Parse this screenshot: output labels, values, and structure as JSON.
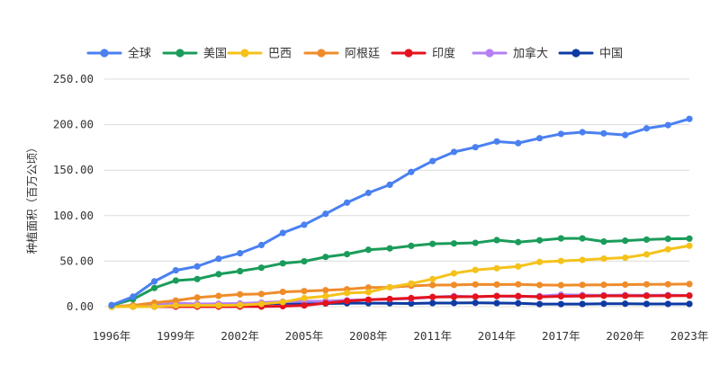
{
  "chart_data": {
    "type": "line",
    "title": "",
    "xlabel": "",
    "ylabel": "种植面积（百万公顷）",
    "ylim": [
      0,
      250
    ],
    "y_ticks": [
      "0.00",
      "50.00",
      "100.00",
      "150.00",
      "200.00",
      "250.00"
    ],
    "y_tick_values": [
      0,
      50,
      100,
      150,
      200,
      250
    ],
    "x": [
      1996,
      1997,
      1998,
      1999,
      2000,
      2001,
      2002,
      2003,
      2004,
      2005,
      2006,
      2007,
      2008,
      2009,
      2010,
      2011,
      2012,
      2013,
      2014,
      2015,
      2016,
      2017,
      2018,
      2019,
      2020,
      2021,
      2022,
      2023
    ],
    "x_tick_labels": [
      "1996年",
      "1999年",
      "2002年",
      "2005年",
      "2008年",
      "2011年",
      "2014年",
      "2017年",
      "2020年",
      "2023年"
    ],
    "x_tick_values": [
      1996,
      1999,
      2002,
      2005,
      2008,
      2011,
      2014,
      2017,
      2020,
      2023
    ],
    "grid": true,
    "legend_position": "top",
    "series": [
      {
        "name": "全球",
        "color": "#4a80f0",
        "values": [
          1.7,
          11,
          27.8,
          39.9,
          44.2,
          52.6,
          58.7,
          67.7,
          81,
          90,
          102,
          114.3,
          125,
          134,
          148,
          160,
          170,
          175.2,
          181.5,
          179.7,
          185.1,
          189.8,
          191.7,
          190.4,
          188.6,
          195.9,
          199.5,
          206.3
        ]
      },
      {
        "name": "美国",
        "color": "#1a9c5a",
        "values": [
          1.5,
          8.1,
          20.5,
          28.7,
          30.3,
          35.7,
          39,
          42.8,
          47.6,
          49.8,
          54.6,
          57.7,
          62.5,
          64,
          66.8,
          69,
          69.5,
          70.1,
          73.1,
          70.9,
          72.9,
          75,
          75,
          71.5,
          72.5,
          73.7,
          74.5,
          74.8
        ]
      },
      {
        "name": "巴西",
        "color": "#f5c21b",
        "values": [
          0,
          0,
          0,
          1.2,
          1.3,
          1.3,
          1.7,
          3,
          5,
          9.4,
          11.5,
          15,
          15.8,
          21.4,
          25.4,
          30.3,
          36.6,
          40.3,
          42.2,
          44.2,
          49.1,
          50.2,
          51.3,
          52.8,
          53.8,
          57.4,
          63,
          66.9
        ]
      },
      {
        "name": "阿根廷",
        "color": "#ef8c2a",
        "values": [
          0.1,
          1.4,
          4.3,
          6.7,
          10,
          11.8,
          13.5,
          13.9,
          16.2,
          17.1,
          18,
          19.1,
          21,
          21.3,
          22.9,
          23.7,
          23.9,
          24.4,
          24.3,
          24.5,
          23.8,
          23.6,
          23.9,
          24,
          24.2,
          24.5,
          24.6,
          24.8
        ]
      },
      {
        "name": "印度",
        "color": "#e3121d",
        "values": [
          0,
          0,
          0,
          0,
          0,
          0,
          0.1,
          0.1,
          0.5,
          1.3,
          3.8,
          6.2,
          7.6,
          8.4,
          9.4,
          10.6,
          10.8,
          11,
          11.6,
          11.6,
          10.8,
          11.4,
          11.6,
          11.9,
          11.9,
          11.9,
          12,
          12.1
        ]
      },
      {
        "name": "加拿大",
        "color": "#b47ff0",
        "values": [
          0.1,
          1.3,
          2.8,
          4,
          3,
          3.2,
          3.5,
          4.4,
          5.4,
          5.8,
          6.1,
          7,
          7.6,
          8.2,
          8.8,
          10.4,
          11.6,
          10.8,
          11.6,
          11,
          11.6,
          13.1,
          12.7,
          12.5,
          12.7,
          12.5,
          12.7,
          12.3
        ]
      },
      {
        "name": "中国",
        "color": "#0d3aa3",
        "values": [
          0,
          0,
          0,
          0.3,
          0.5,
          1.5,
          2.1,
          2.8,
          3.7,
          3.3,
          3.5,
          3.8,
          3.8,
          3.7,
          3.5,
          3.9,
          4,
          4.2,
          3.9,
          3.7,
          2.8,
          2.8,
          2.9,
          3.2,
          3.2,
          3,
          3,
          3
        ]
      }
    ]
  }
}
